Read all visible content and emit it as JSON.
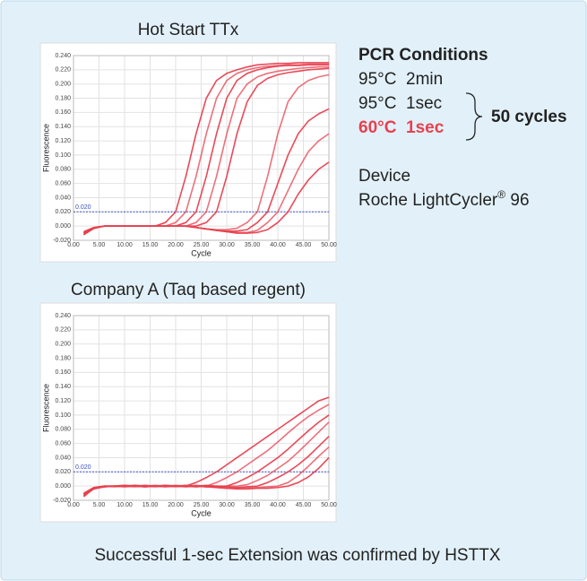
{
  "chart_data": [
    {
      "type": "line",
      "title": "Hot Start TTx",
      "xlabel": "Cycle",
      "ylabel": "Fluorescence",
      "color": "#e8404f",
      "xlim": [
        0,
        50
      ],
      "ylim": [
        -0.02,
        0.24
      ],
      "xticks": [
        {
          "value": 0,
          "label": "0.00"
        },
        {
          "value": 5,
          "label": "5.00"
        },
        {
          "value": 10,
          "label": "10.00"
        },
        {
          "value": 15,
          "label": "15.00"
        },
        {
          "value": 20,
          "label": "20.00"
        },
        {
          "value": 25,
          "label": "25.00"
        },
        {
          "value": 30,
          "label": "30.00"
        },
        {
          "value": 35,
          "label": "35.00"
        },
        {
          "value": 40,
          "label": "40.00"
        },
        {
          "value": 45,
          "label": "45.00"
        },
        {
          "value": 50,
          "label": "50.00"
        }
      ],
      "yticks": [
        {
          "value": -0.02,
          "label": "-0.020"
        },
        {
          "value": 0,
          "label": "0.000"
        },
        {
          "value": 0.02,
          "label": "0.020"
        },
        {
          "value": 0.04,
          "label": "0.040"
        },
        {
          "value": 0.06,
          "label": "0.060"
        },
        {
          "value": 0.08,
          "label": "0.080"
        },
        {
          "value": 0.1,
          "label": "0.100"
        },
        {
          "value": 0.12,
          "label": "0.120"
        },
        {
          "value": 0.14,
          "label": "0.140"
        },
        {
          "value": 0.16,
          "label": "0.160"
        },
        {
          "value": 0.18,
          "label": "0.180"
        },
        {
          "value": 0.2,
          "label": "0.200"
        },
        {
          "value": 0.22,
          "label": "0.220"
        },
        {
          "value": 0.24,
          "label": "0.240"
        }
      ],
      "grid": true,
      "threshold": {
        "value": 0.02,
        "label": "0.020"
      },
      "x": [
        2,
        4,
        6,
        8,
        10,
        12,
        14,
        16,
        18,
        20,
        22,
        24,
        26,
        28,
        30,
        32,
        34,
        36,
        38,
        40,
        42,
        44,
        46,
        48,
        50
      ],
      "series": [
        {
          "values": [
            -0.008,
            -0.002,
            0,
            0,
            0,
            0,
            0,
            0,
            0.005,
            0.02,
            0.07,
            0.13,
            0.18,
            0.205,
            0.215,
            0.22,
            0.224,
            0.227,
            0.228,
            0.229,
            0.229,
            0.23,
            0.23,
            0.23,
            0.23
          ]
        },
        {
          "values": [
            -0.008,
            -0.002,
            0,
            0,
            0,
            0,
            0,
            0,
            0,
            0.005,
            0.02,
            0.07,
            0.13,
            0.18,
            0.205,
            0.215,
            0.22,
            0.223,
            0.225,
            0.226,
            0.227,
            0.227,
            0.228,
            0.228,
            0.228
          ]
        },
        {
          "values": [
            -0.01,
            -0.003,
            0,
            0,
            0,
            0,
            0,
            0,
            0,
            0,
            0.005,
            0.02,
            0.07,
            0.13,
            0.18,
            0.205,
            0.215,
            0.22,
            0.223,
            0.225,
            0.226,
            0.226,
            0.227,
            0.227,
            0.227
          ]
        },
        {
          "values": [
            -0.01,
            -0.003,
            0,
            0,
            0,
            0,
            0,
            0,
            0,
            0,
            0,
            0.005,
            0.02,
            0.07,
            0.13,
            0.18,
            0.2,
            0.21,
            0.215,
            0.218,
            0.22,
            0.222,
            0.223,
            0.224,
            0.224
          ]
        },
        {
          "values": [
            -0.012,
            -0.003,
            0,
            0,
            0,
            0,
            0,
            0,
            0,
            0,
            0,
            0,
            0.005,
            0.02,
            0.07,
            0.13,
            0.175,
            0.198,
            0.208,
            0.213,
            0.216,
            0.218,
            0.22,
            0.221,
            0.222
          ]
        },
        {
          "values": [
            -0.012,
            -0.003,
            0,
            0,
            0,
            0,
            0,
            0,
            0,
            0,
            0,
            -0.002,
            -0.004,
            -0.005,
            -0.005,
            -0.003,
            0.005,
            0.02,
            0.07,
            0.13,
            0.175,
            0.195,
            0.205,
            0.21,
            0.213
          ]
        },
        {
          "values": [
            -0.012,
            -0.003,
            0,
            0,
            0,
            0,
            0,
            0,
            0,
            0,
            0,
            -0.002,
            -0.004,
            -0.006,
            -0.007,
            -0.007,
            -0.005,
            0.005,
            0.02,
            0.06,
            0.1,
            0.13,
            0.148,
            0.158,
            0.165
          ]
        },
        {
          "values": [
            -0.01,
            -0.003,
            0,
            0,
            0,
            0,
            0,
            0,
            0,
            0,
            0,
            -0.002,
            -0.004,
            -0.006,
            -0.008,
            -0.009,
            -0.009,
            -0.006,
            0.005,
            0.02,
            0.05,
            0.08,
            0.105,
            0.12,
            0.13
          ]
        },
        {
          "values": [
            -0.01,
            -0.003,
            0,
            0,
            0,
            0,
            0,
            0,
            0,
            0,
            0,
            -0.002,
            -0.004,
            -0.006,
            -0.008,
            -0.01,
            -0.01,
            -0.009,
            -0.005,
            0.005,
            0.02,
            0.045,
            0.065,
            0.08,
            0.09
          ]
        }
      ]
    },
    {
      "type": "line",
      "title": "Company A (Taq based regent)",
      "xlabel": "Cycle",
      "ylabel": "Fluorescence",
      "color": "#e8404f",
      "xlim": [
        0,
        50
      ],
      "ylim": [
        -0.02,
        0.24
      ],
      "xticks": [
        {
          "value": 0,
          "label": "0.00"
        },
        {
          "value": 5,
          "label": "5.00"
        },
        {
          "value": 10,
          "label": "10.00"
        },
        {
          "value": 15,
          "label": "15.00"
        },
        {
          "value": 20,
          "label": "20.00"
        },
        {
          "value": 25,
          "label": "25.00"
        },
        {
          "value": 30,
          "label": "30.00"
        },
        {
          "value": 35,
          "label": "35.00"
        },
        {
          "value": 40,
          "label": "40.00"
        },
        {
          "value": 45,
          "label": "45.00"
        },
        {
          "value": 50,
          "label": "50.00"
        }
      ],
      "yticks": [
        {
          "value": -0.02,
          "label": "-0.020"
        },
        {
          "value": 0,
          "label": "0.000"
        },
        {
          "value": 0.02,
          "label": "0.020"
        },
        {
          "value": 0.04,
          "label": "0.040"
        },
        {
          "value": 0.06,
          "label": "0.060"
        },
        {
          "value": 0.08,
          "label": "0.080"
        },
        {
          "value": 0.1,
          "label": "0.100"
        },
        {
          "value": 0.12,
          "label": "0.120"
        },
        {
          "value": 0.14,
          "label": "0.140"
        },
        {
          "value": 0.16,
          "label": "0.160"
        },
        {
          "value": 0.18,
          "label": "0.180"
        },
        {
          "value": 0.2,
          "label": "0.200"
        },
        {
          "value": 0.22,
          "label": "0.220"
        },
        {
          "value": 0.24,
          "label": "0.240"
        }
      ],
      "grid": true,
      "threshold": {
        "value": 0.02,
        "label": "0.020"
      },
      "x": [
        2,
        4,
        6,
        8,
        10,
        12,
        14,
        16,
        18,
        20,
        22,
        24,
        26,
        28,
        30,
        32,
        34,
        36,
        38,
        40,
        42,
        44,
        46,
        48,
        50
      ],
      "series": [
        {
          "values": [
            -0.015,
            -0.003,
            -0.001,
            0,
            0.001,
            0,
            -0.001,
            0,
            0.001,
            0,
            0,
            0.005,
            0.012,
            0.02,
            0.03,
            0.04,
            0.05,
            0.06,
            0.07,
            0.08,
            0.09,
            0.1,
            0.11,
            0.12,
            0.125
          ]
        },
        {
          "values": [
            -0.014,
            -0.003,
            -0.001,
            0,
            0.001,
            0,
            0,
            -0.001,
            0,
            0.001,
            0,
            -0.001,
            0,
            0.005,
            0.012,
            0.02,
            0.03,
            0.04,
            0.05,
            0.062,
            0.075,
            0.087,
            0.098,
            0.107,
            0.115
          ]
        },
        {
          "values": [
            -0.013,
            -0.004,
            -0.001,
            0,
            0,
            0.001,
            0,
            0,
            -0.001,
            0,
            0.001,
            0,
            -0.001,
            0,
            0,
            0.005,
            0.012,
            0.02,
            0.03,
            0.04,
            0.052,
            0.065,
            0.078,
            0.09,
            0.1
          ]
        },
        {
          "values": [
            -0.012,
            -0.003,
            0,
            -0.001,
            0,
            0.001,
            0,
            0,
            0,
            -0.001,
            0,
            0.001,
            0,
            -0.001,
            0,
            0,
            0.002,
            0.008,
            0.015,
            0.025,
            0.035,
            0.048,
            0.062,
            0.076,
            0.09
          ]
        },
        {
          "values": [
            -0.012,
            -0.003,
            0,
            0,
            -0.001,
            0,
            0.001,
            0,
            0,
            0,
            -0.001,
            0,
            0.001,
            0,
            -0.001,
            -0.002,
            -0.001,
            0,
            0.005,
            0.012,
            0.02,
            0.03,
            0.042,
            0.056,
            0.07
          ]
        },
        {
          "values": [
            -0.011,
            -0.002,
            0,
            0,
            0,
            -0.001,
            0,
            0.001,
            0,
            0,
            0,
            -0.001,
            0,
            -0.002,
            -0.003,
            -0.003,
            -0.002,
            -0.002,
            -0.001,
            0,
            0.005,
            0.015,
            0.028,
            0.042,
            0.055
          ]
        },
        {
          "values": [
            -0.01,
            -0.002,
            0,
            0,
            0,
            0,
            -0.001,
            0,
            0.001,
            0,
            0,
            0,
            -0.001,
            -0.002,
            -0.003,
            -0.004,
            -0.004,
            -0.003,
            -0.003,
            -0.002,
            0,
            0.005,
            0.013,
            0.025,
            0.04
          ]
        }
      ]
    }
  ],
  "conditions": {
    "title": "PCR Conditions",
    "steps": [
      "95°C  2min",
      "95°C  1sec",
      "60°C  1sec"
    ],
    "cycles": "50 cycles",
    "device_title": "Device",
    "device": "Roche LightCycler",
    "device_mark": "®",
    "device_model": " 96"
  },
  "caption": "Successful 1-sec Extension was confirmed by HSTTX"
}
